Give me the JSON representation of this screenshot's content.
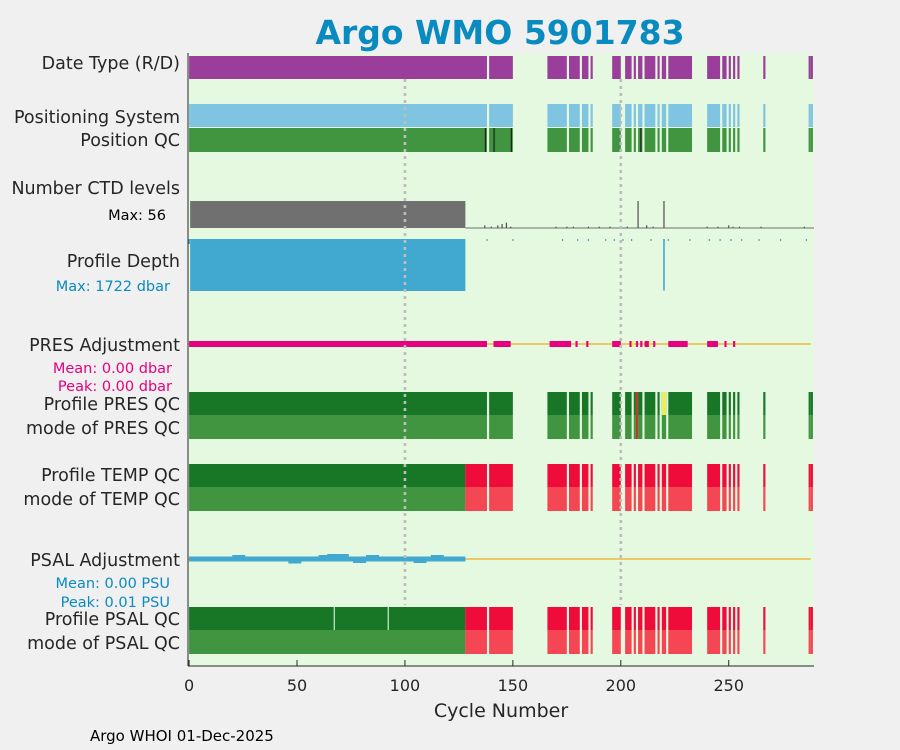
{
  "chart_data": {
    "type": "bar",
    "title": "Argo WMO 5901783",
    "xlabel": "Cycle Number",
    "xlim": [
      -0.5,
      289.5
    ],
    "xticks": [
      0,
      50,
      100,
      150,
      200,
      250
    ],
    "xtick_labels": [
      "0",
      "50",
      "100",
      "150",
      "200",
      "250"
    ],
    "vlines": [
      100,
      200
    ],
    "footer": "Argo WHOI 01-Dec-2025",
    "rows": {
      "date_type": "Date Type (R/D)",
      "positioning": "Positioning System",
      "position_qc": "Position QC",
      "n_levels": "Number CTD levels",
      "n_levels_max": "Max: 56",
      "profile_depth": "Profile Depth",
      "profile_depth_max": "Max: 1722 dbar",
      "pres_adj": "PRES Adjustment",
      "pres_adj_mean": "Mean: 0.00 dbar",
      "pres_adj_peak": "Peak: 0.00 dbar",
      "profile_pres_qc": "Profile PRES QC",
      "mode_pres_qc": "mode of PRES QC",
      "profile_temp_qc": "Profile TEMP QC",
      "mode_temp_qc": "mode of TEMP QC",
      "psal_adj": "PSAL Adjustment",
      "psal_adj_mean": "Mean: 0.00 PSU",
      "psal_adj_peak": "Peak: 0.01 PSU",
      "profile_psal_qc": "Profile PSAL QC",
      "mode_psal_qc": "mode of PSAL QC"
    },
    "present_cycles": [
      [
        0,
        138
      ],
      [
        139,
        150
      ],
      [
        166,
        175
      ],
      [
        176,
        181
      ],
      [
        182,
        185
      ],
      [
        186,
        187
      ],
      [
        196,
        200
      ],
      [
        202,
        205
      ],
      [
        206,
        207
      ],
      [
        208,
        210
      ],
      [
        211,
        216
      ],
      [
        217,
        218
      ],
      [
        219,
        221
      ],
      [
        222,
        233
      ],
      [
        240,
        246
      ],
      [
        247,
        249
      ],
      [
        250,
        251
      ],
      [
        252,
        253
      ],
      [
        254,
        255
      ],
      [
        266,
        267
      ],
      [
        287,
        288
      ],
      [
        288,
        289
      ]
    ],
    "position_qc_marks": [
      137,
      141,
      149,
      209
    ],
    "levels_cycles_end": 128,
    "levels_max": 56,
    "levels_sparse": [
      [
        137,
        0.1
      ],
      [
        140,
        0.05
      ],
      [
        143,
        0.1
      ],
      [
        145,
        0.15
      ],
      [
        147,
        0.2
      ],
      [
        149,
        0.05
      ],
      [
        170,
        0.05
      ],
      [
        175,
        0.05
      ],
      [
        178,
        0.05
      ],
      [
        185,
        0.05
      ],
      [
        190,
        0.05
      ],
      [
        195,
        0.05
      ],
      [
        203,
        0.05
      ],
      [
        208,
        1.0
      ],
      [
        212,
        0.1
      ],
      [
        215,
        0.05
      ],
      [
        220,
        1.0
      ],
      [
        240,
        0.05
      ],
      [
        245,
        0.05
      ],
      [
        250,
        0.1
      ],
      [
        252,
        0.05
      ],
      [
        255,
        0.05
      ],
      [
        265,
        0.05
      ],
      [
        285,
        0.05
      ]
    ],
    "depth_cycles_end": 128,
    "depth_extra": [
      [
        220,
        0.99
      ]
    ],
    "depth_ticks": [
      138,
      150,
      173,
      180,
      185,
      193,
      197,
      201,
      205,
      214,
      222,
      232,
      241,
      246,
      251,
      256,
      264,
      274,
      286
    ],
    "pres_adj_segments": [
      [
        0,
        138
      ],
      [
        141,
        149
      ],
      [
        167,
        177
      ],
      [
        179,
        180
      ],
      [
        184,
        185
      ],
      [
        196,
        200
      ],
      [
        204,
        205
      ],
      [
        207,
        208
      ],
      [
        209,
        210
      ],
      [
        211,
        214
      ],
      [
        215,
        216
      ],
      [
        222,
        231
      ],
      [
        240,
        245
      ],
      [
        248,
        249
      ],
      [
        252,
        253
      ]
    ],
    "pres_adj_yellow": [
      [
        205,
        206
      ],
      [
        213,
        214
      ]
    ],
    "pres_qc_yellow": [
      [
        219,
        221
      ]
    ],
    "pres_qc_red": [
      [
        207,
        208
      ]
    ],
    "qc_green_end": 128,
    "psal_adj_end": 128,
    "psal_qc_marks": [
      67,
      92
    ],
    "colors": {
      "plot_bg": "#e5f8e0",
      "fig_bg": "#f0f0f0",
      "title": "#0a8bbf",
      "purple": "#9b3d9b",
      "light_blue": "#7fc4e0",
      "green_mid": "#419541",
      "green_dark": "#187727",
      "gray": "#707070",
      "cyan": "#41a9d0",
      "magenta": "#e6007e",
      "orange": "#efb83d",
      "red": "#f00c3a",
      "red_light": "#f54654",
      "yellow": "#e6f05a"
    }
  }
}
